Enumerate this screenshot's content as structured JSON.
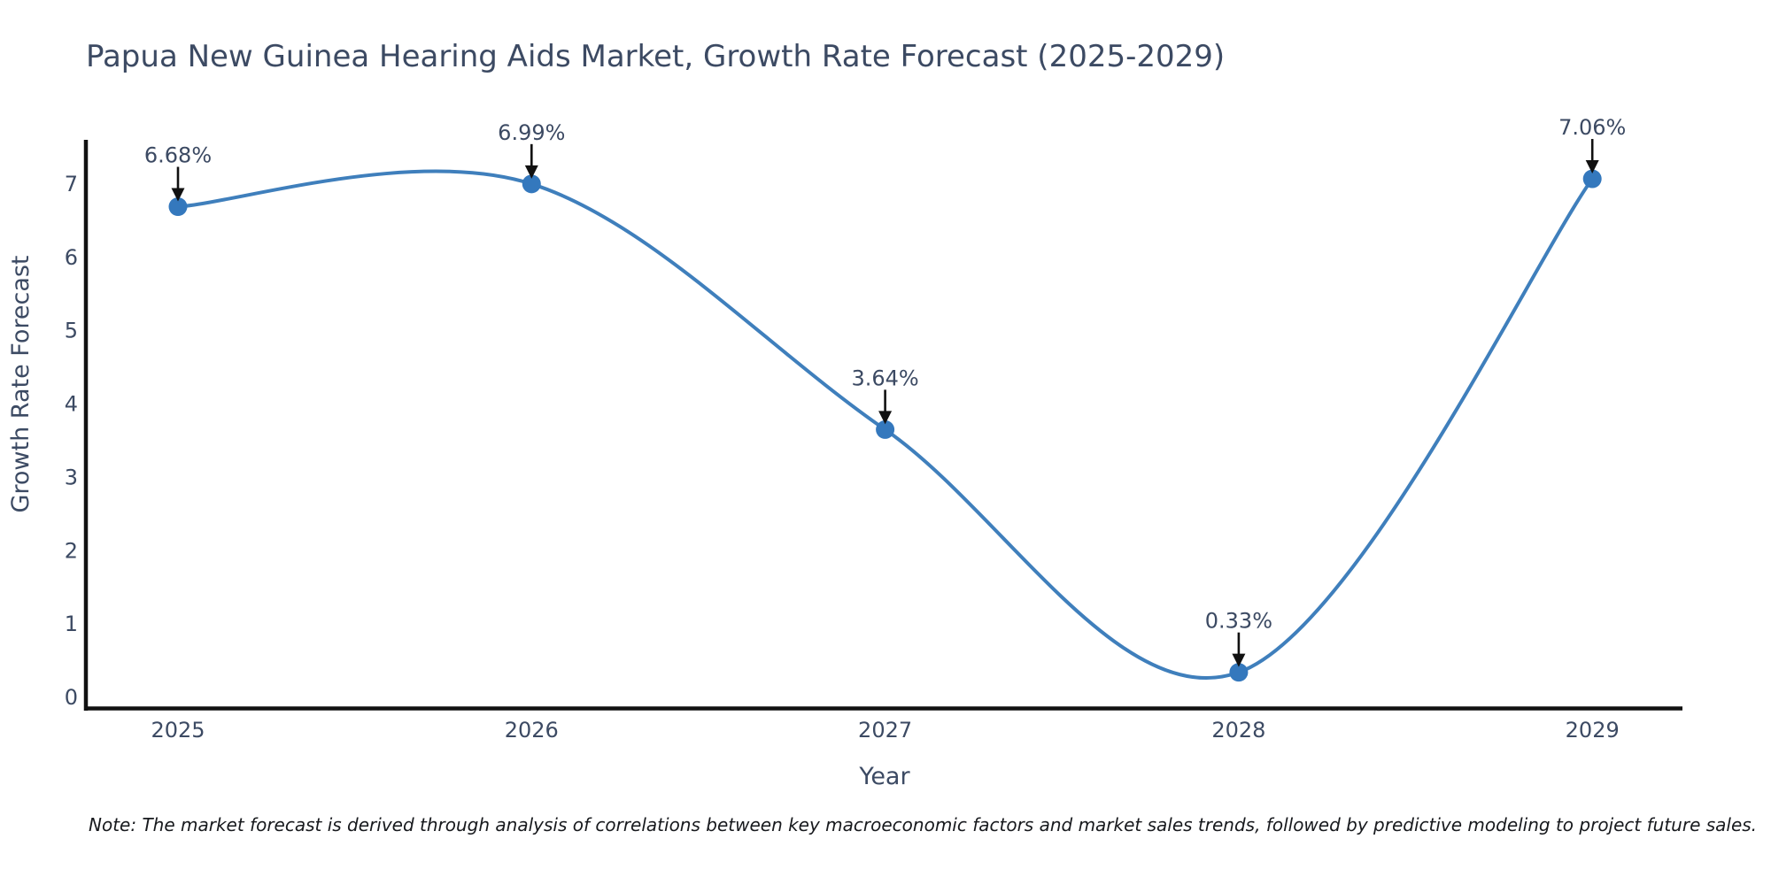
{
  "title": "Papua New Guinea Hearing Aids Market, Growth Rate Forecast (2025-2029)",
  "note": "Note: The market forecast is derived through analysis of correlations between key macroeconomic factors and market sales trends, followed by predictive modeling to project future sales.",
  "chart_data": {
    "type": "line",
    "title": "Papua New Guinea Hearing Aids Market, Growth Rate Forecast (2025-2029)",
    "categories": [
      "2025",
      "2026",
      "2027",
      "2028",
      "2029"
    ],
    "values": [
      6.68,
      6.99,
      3.64,
      0.33,
      7.06
    ],
    "point_labels": [
      "6.68%",
      "6.99%",
      "3.64%",
      "0.33%",
      "7.06%"
    ],
    "xlabel": "Year",
    "ylabel": "Growth Rate Forecast",
    "yticks": [
      0,
      1,
      2,
      3,
      4,
      5,
      6,
      7
    ],
    "ylim": [
      0,
      7.58
    ],
    "grid": false,
    "legend": "none",
    "curve": "spline",
    "line_color": "#3f7fbc",
    "marker_color": "#3478bd",
    "axis_color": "#111111",
    "text_color": "#3c4a63",
    "annotation_arrow_color": "#111111"
  }
}
